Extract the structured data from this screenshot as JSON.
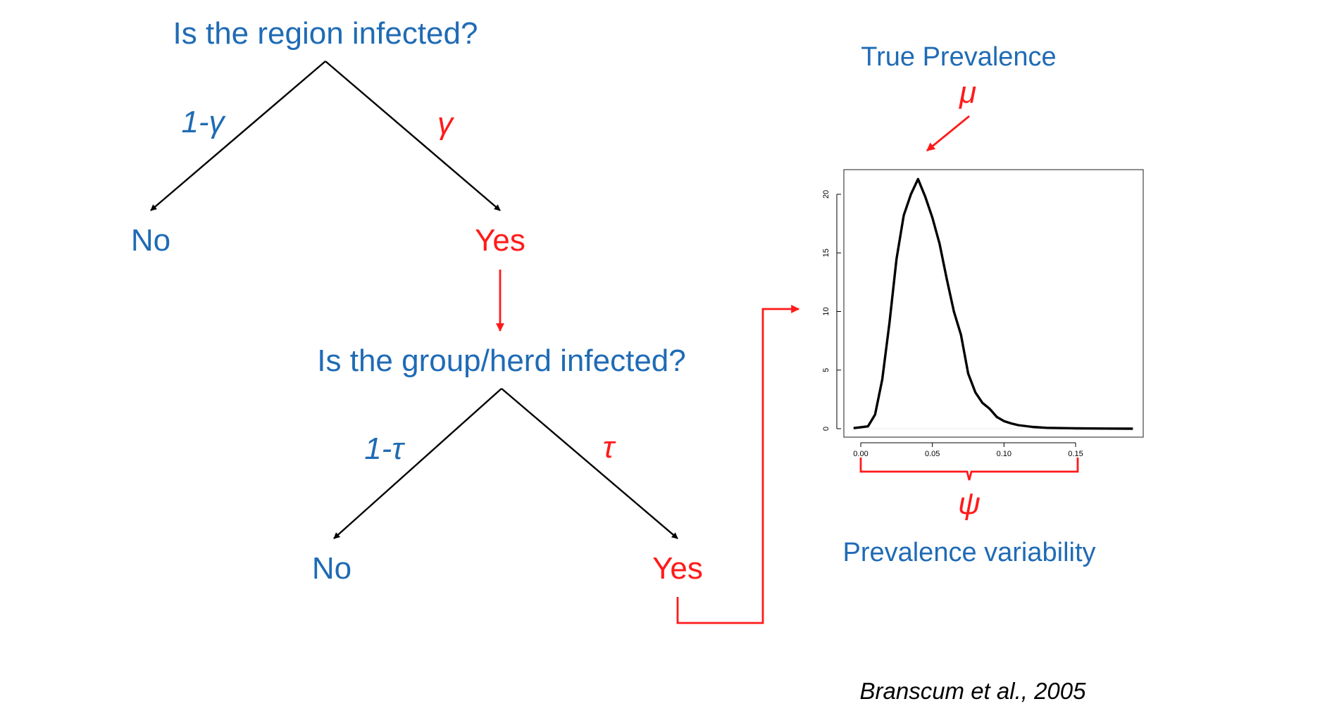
{
  "tree": {
    "q1": "Is the region infected?",
    "q1_no_prob": "1-γ",
    "q1_yes_prob": "γ",
    "q1_no": "No",
    "q1_yes": "Yes",
    "q2": "Is the group/herd infected?",
    "q2_no_prob": "1-τ",
    "q2_yes_prob": "τ",
    "q2_no": "No",
    "q2_yes": "Yes"
  },
  "plot": {
    "top_label": "True Prevalence",
    "mu_symbol": "μ",
    "psi_symbol": "ψ",
    "bottom_label": "Prevalence variability",
    "x_ticks": [
      "0.00",
      "0.05",
      "0.10",
      "0.15"
    ],
    "y_ticks": [
      "0",
      "5",
      "10",
      "15",
      "20"
    ],
    "x_tick_values": [
      0,
      0.05,
      0.1,
      0.15
    ],
    "y_tick_values": [
      0,
      5,
      10,
      15,
      20
    ],
    "xlim": [
      0,
      0.19
    ],
    "ylim": [
      0,
      22
    ],
    "curve": [
      [
        -0.005,
        0.05
      ],
      [
        0.005,
        0.2
      ],
      [
        0.01,
        1.2
      ],
      [
        0.015,
        4.2
      ],
      [
        0.02,
        9.0
      ],
      [
        0.025,
        14.5
      ],
      [
        0.03,
        18.2
      ],
      [
        0.035,
        20.0
      ],
      [
        0.04,
        21.3
      ],
      [
        0.045,
        19.8
      ],
      [
        0.05,
        18.0
      ],
      [
        0.055,
        15.8
      ],
      [
        0.06,
        12.8
      ],
      [
        0.065,
        10.0
      ],
      [
        0.07,
        8.0
      ],
      [
        0.075,
        4.7
      ],
      [
        0.08,
        3.1
      ],
      [
        0.085,
        2.2
      ],
      [
        0.09,
        1.7
      ],
      [
        0.095,
        1.0
      ],
      [
        0.1,
        0.65
      ],
      [
        0.105,
        0.45
      ],
      [
        0.11,
        0.3
      ],
      [
        0.12,
        0.15
      ],
      [
        0.13,
        0.07
      ],
      [
        0.15,
        0.03
      ],
      [
        0.17,
        0.01
      ],
      [
        0.19,
        0.0
      ]
    ]
  },
  "citation": "Branscum et al., 2005",
  "colors": {
    "blue": "#1f6bb5",
    "red": "#ff1a1a",
    "black": "#000000"
  }
}
